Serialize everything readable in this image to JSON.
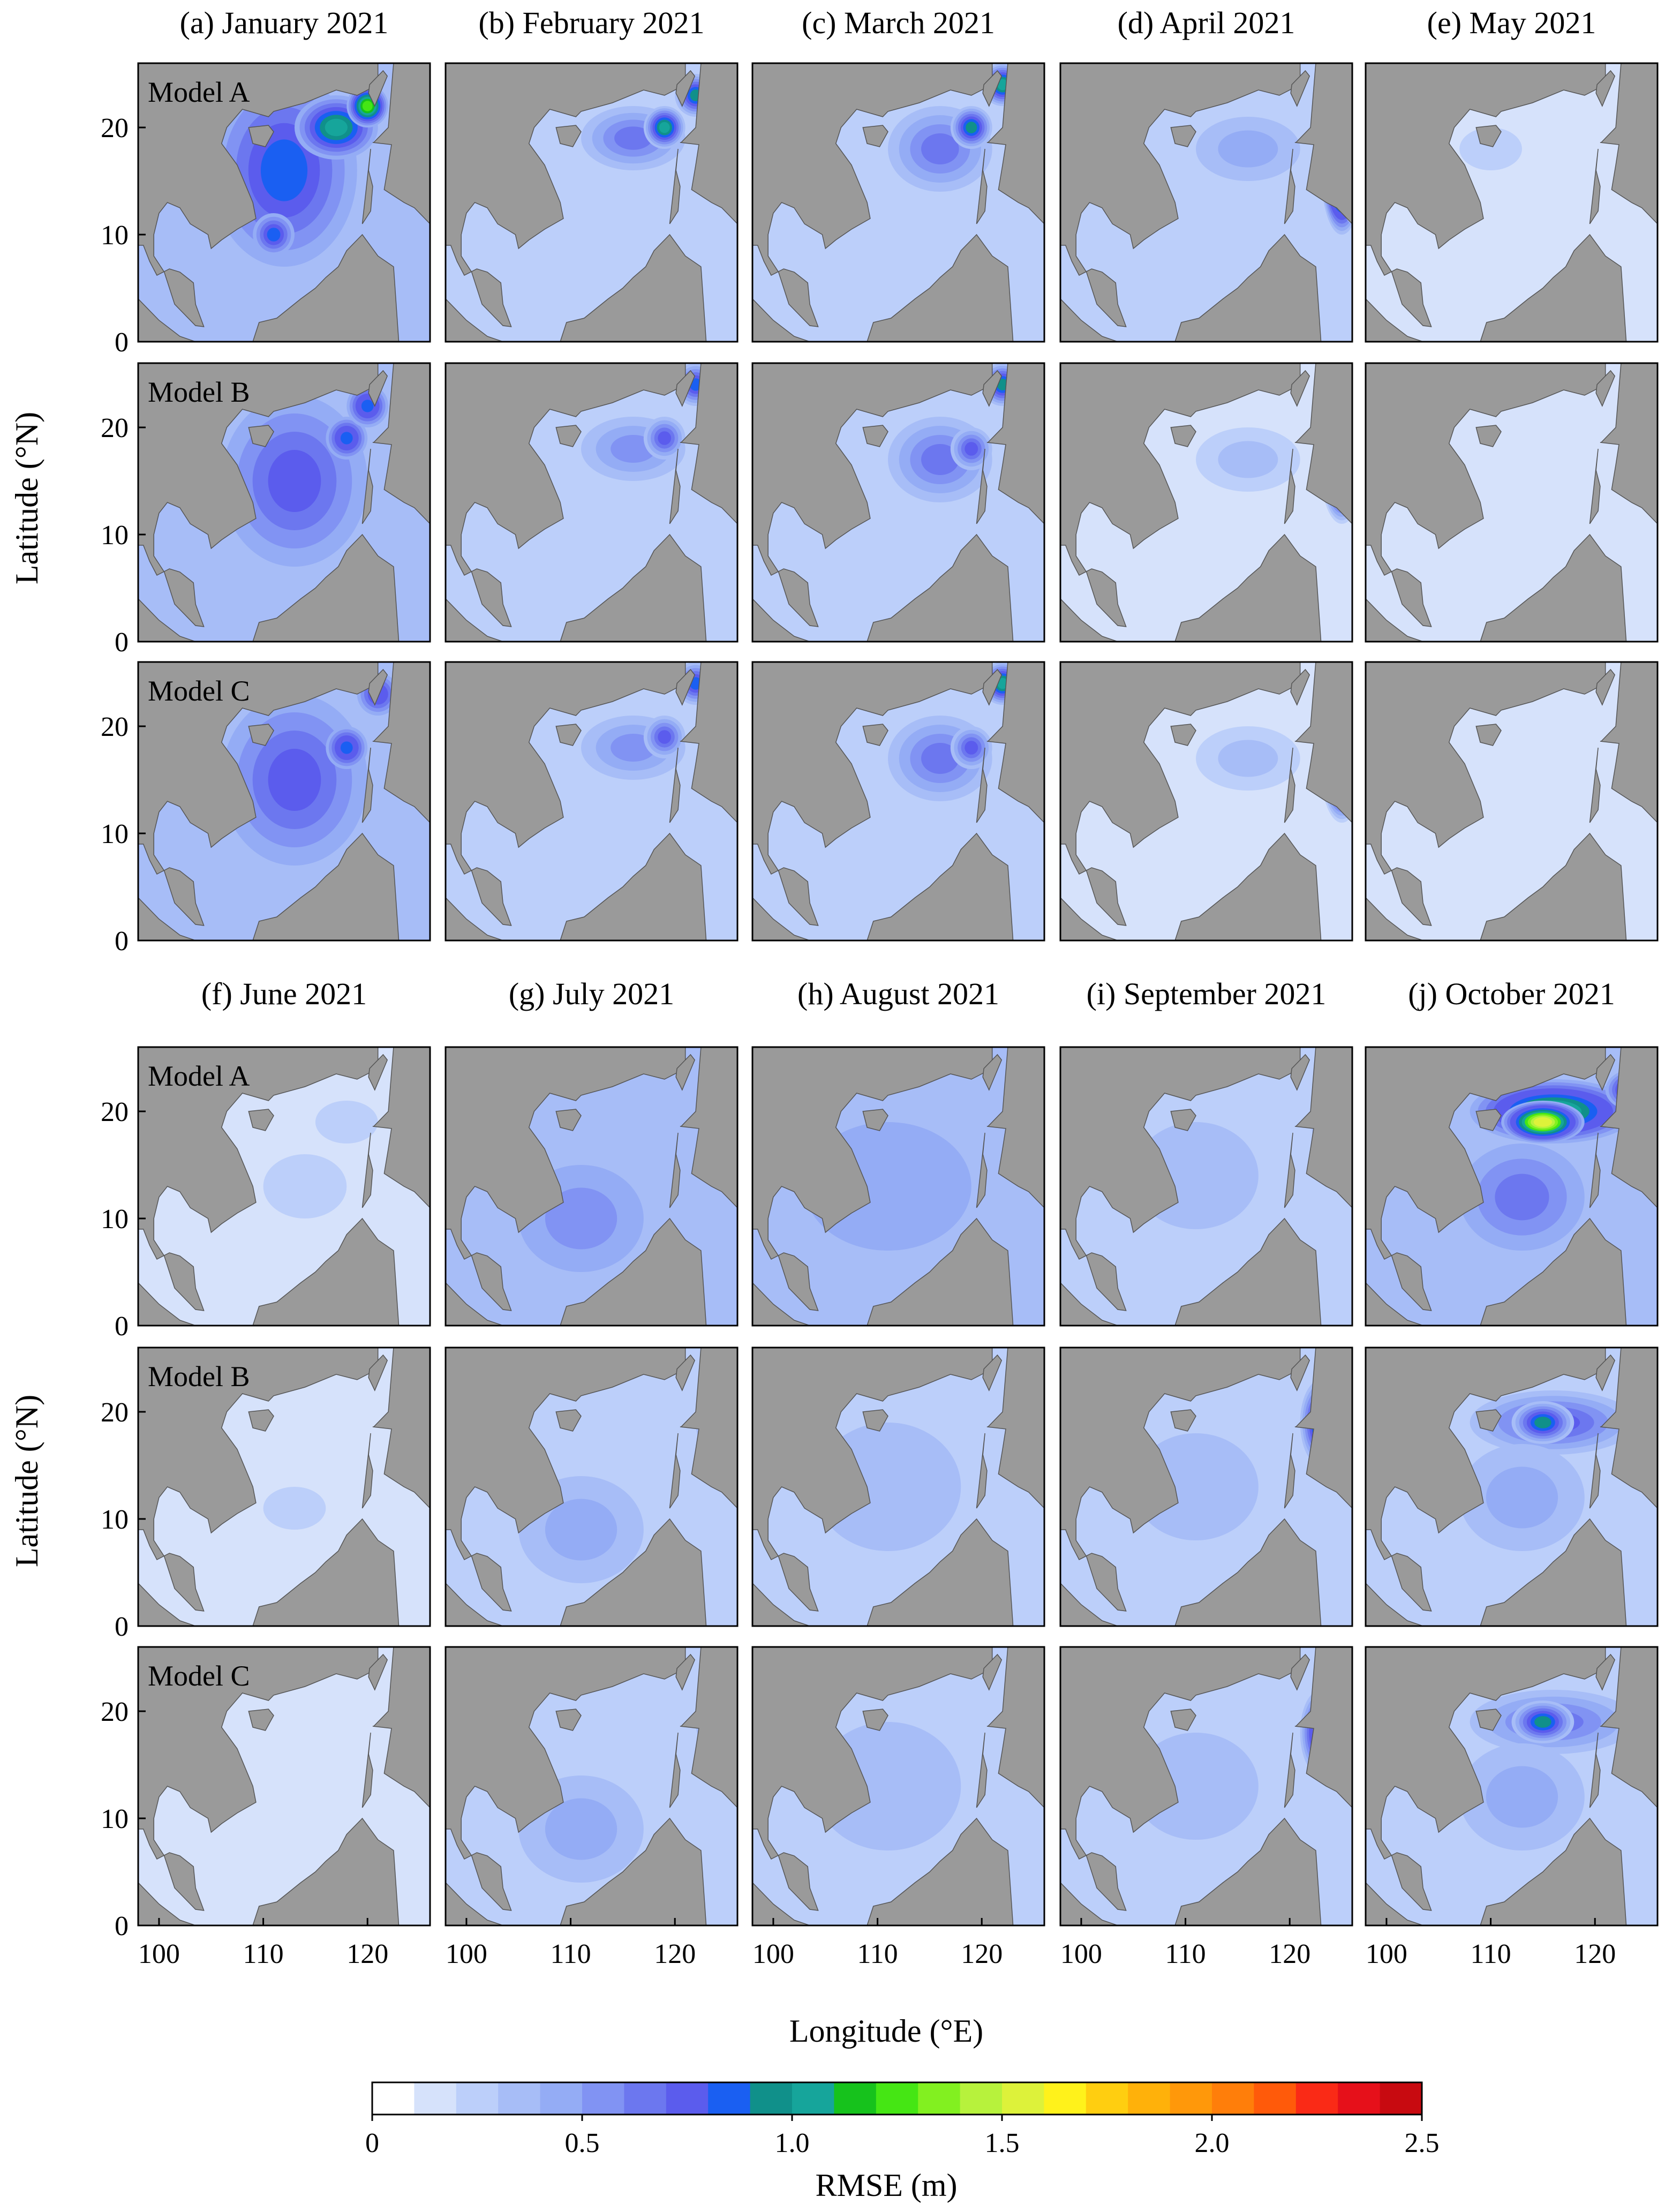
{
  "chart_data": {
    "type": "heatmap",
    "description_units": "RMSE (m) of modelled field over the South China Sea region",
    "months": [
      {
        "label": "(a) January 2021"
      },
      {
        "label": "(b) February 2021"
      },
      {
        "label": "(c) March 2021"
      },
      {
        "label": "(d) April 2021"
      },
      {
        "label": "(e) May 2021"
      },
      {
        "label": "(f) June 2021"
      },
      {
        "label": "(g) July 2021"
      },
      {
        "label": "(h) August 2021"
      },
      {
        "label": "(i) September 2021"
      },
      {
        "label": "(j) October 2021"
      }
    ],
    "models": [
      "Model A",
      "Model B",
      "Model C"
    ],
    "xlabel": "Longitude (°E)",
    "ylabel": "Latitude (°N)",
    "xlim": [
      98,
      126
    ],
    "ylim": [
      0,
      26
    ],
    "xticks": [
      "100",
      "110",
      "120"
    ],
    "yticks": [
      "0",
      "10",
      "20"
    ],
    "colorbar": {
      "label": "RMSE (m)",
      "levels": [
        0,
        0.1,
        0.2,
        0.3,
        0.4,
        0.5,
        0.6,
        0.7,
        0.8,
        0.9,
        1.0,
        1.1,
        1.2,
        1.3,
        1.4,
        1.5,
        1.6,
        1.7,
        1.8,
        1.9,
        2.0,
        2.1,
        2.2,
        2.3,
        2.4,
        2.5
      ],
      "tick_labels": [
        "0",
        "0.5",
        "1.0",
        "1.5",
        "2.0",
        "2.5"
      ],
      "colors": [
        "#ffffff",
        "#d6e2fb",
        "#bccffa",
        "#a7bdf7",
        "#94acf5",
        "#8193f3",
        "#6c77ef",
        "#5b5ced",
        "#1a5ff2",
        "#10908a",
        "#16a59b",
        "#16c21c",
        "#45e614",
        "#82f020",
        "#b7f23c",
        "#ddf23a",
        "#fff21b",
        "#ffce10",
        "#ffb10a",
        "#ff980a",
        "#ff7e0a",
        "#ff5a0a",
        "#fa2a16",
        "#e6101a",
        "#c80a10"
      ]
    },
    "land_color": "#9a9a9a",
    "panels": [
      {
        "month": 0,
        "model": 0,
        "base": 0.32,
        "blobs": [
          [
            112,
            16,
            7,
            9,
            0.85
          ],
          [
            117,
            20,
            4,
            3,
            1.05
          ],
          [
            120,
            22,
            2,
            2,
            1.3
          ],
          [
            111,
            10,
            2,
            2,
            0.9
          ]
        ]
      },
      {
        "month": 0,
        "model": 1,
        "base": 0.3,
        "blobs": [
          [
            113,
            15,
            7,
            8,
            0.72
          ],
          [
            118,
            19,
            2,
            2,
            0.9
          ],
          [
            120,
            22,
            2,
            2,
            0.9
          ]
        ]
      },
      {
        "month": 0,
        "model": 2,
        "base": 0.3,
        "blobs": [
          [
            113,
            15,
            7,
            8,
            0.7
          ],
          [
            118,
            18,
            2,
            2,
            0.9
          ],
          [
            121,
            23,
            2,
            2,
            0.85
          ]
        ]
      },
      {
        "month": 1,
        "model": 0,
        "base": 0.25,
        "blobs": [
          [
            116,
            19,
            5,
            3,
            0.7
          ],
          [
            119,
            20,
            2,
            2,
            1.1
          ],
          [
            122,
            23,
            2,
            2,
            1.0
          ]
        ]
      },
      {
        "month": 1,
        "model": 1,
        "base": 0.22,
        "blobs": [
          [
            116,
            18,
            5,
            3,
            0.6
          ],
          [
            119,
            19,
            2,
            2,
            0.75
          ],
          [
            122,
            24,
            2,
            2,
            0.85
          ]
        ]
      },
      {
        "month": 1,
        "model": 2,
        "base": 0.22,
        "blobs": [
          [
            116,
            18,
            5,
            3,
            0.6
          ],
          [
            119,
            19,
            2,
            2,
            0.8
          ],
          [
            122,
            24,
            2,
            2,
            0.85
          ]
        ]
      },
      {
        "month": 2,
        "model": 0,
        "base": 0.27,
        "blobs": [
          [
            116,
            18,
            5,
            4,
            0.75
          ],
          [
            119,
            20,
            2,
            2,
            1.05
          ],
          [
            122,
            24,
            2,
            2,
            1.15
          ]
        ]
      },
      {
        "month": 2,
        "model": 1,
        "base": 0.25,
        "blobs": [
          [
            116,
            17,
            5,
            4,
            0.65
          ],
          [
            119,
            18,
            2,
            2,
            0.75
          ],
          [
            122,
            24,
            2,
            2,
            1.0
          ]
        ]
      },
      {
        "month": 2,
        "model": 2,
        "base": 0.25,
        "blobs": [
          [
            116,
            17,
            5,
            4,
            0.65
          ],
          [
            119,
            18,
            2,
            2,
            0.75
          ],
          [
            122,
            24,
            2,
            2,
            1.05
          ]
        ]
      },
      {
        "month": 3,
        "model": 0,
        "base": 0.2,
        "blobs": [
          [
            116,
            18,
            5,
            3,
            0.45
          ],
          [
            125,
            16,
            2,
            6,
            1.7
          ],
          [
            126,
            14,
            1,
            3,
            2.05
          ]
        ]
      },
      {
        "month": 3,
        "model": 1,
        "base": 0.15,
        "blobs": [
          [
            116,
            17,
            5,
            3,
            0.4
          ],
          [
            125,
            16,
            2,
            5,
            1.45
          ],
          [
            126,
            14,
            1,
            2,
            1.8
          ]
        ]
      },
      {
        "month": 3,
        "model": 2,
        "base": 0.15,
        "blobs": [
          [
            116,
            17,
            5,
            3,
            0.4
          ],
          [
            125,
            16,
            2,
            5,
            1.45
          ],
          [
            126,
            14,
            1,
            2,
            1.8
          ]
        ]
      },
      {
        "month": 4,
        "model": 0,
        "base": 0.15,
        "blobs": [
          [
            110,
            18,
            3,
            2,
            0.28
          ]
        ]
      },
      {
        "month": 4,
        "model": 1,
        "base": 0.13,
        "blobs": []
      },
      {
        "month": 4,
        "model": 2,
        "base": 0.13,
        "blobs": []
      },
      {
        "month": 5,
        "model": 0,
        "base": 0.18,
        "blobs": [
          [
            114,
            13,
            4,
            3,
            0.3
          ],
          [
            118,
            19,
            3,
            2,
            0.32
          ]
        ]
      },
      {
        "month": 5,
        "model": 1,
        "base": 0.16,
        "blobs": [
          [
            113,
            11,
            3,
            2,
            0.25
          ]
        ]
      },
      {
        "month": 5,
        "model": 2,
        "base": 0.15,
        "blobs": []
      },
      {
        "month": 6,
        "model": 0,
        "base": 0.3,
        "blobs": [
          [
            111,
            10,
            6,
            5,
            0.55
          ],
          [
            124,
            20,
            2,
            3,
            0.55
          ]
        ]
      },
      {
        "month": 6,
        "model": 1,
        "base": 0.25,
        "blobs": [
          [
            111,
            9,
            6,
            5,
            0.45
          ],
          [
            124,
            19,
            2,
            3,
            0.45
          ]
        ]
      },
      {
        "month": 6,
        "model": 2,
        "base": 0.25,
        "blobs": [
          [
            111,
            9,
            6,
            5,
            0.45
          ],
          [
            124,
            19,
            2,
            3,
            0.45
          ]
        ]
      },
      {
        "month": 7,
        "model": 0,
        "base": 0.3,
        "blobs": [
          [
            111,
            13,
            8,
            6,
            0.4
          ],
          [
            126,
            25,
            1,
            2,
            0.9
          ]
        ]
      },
      {
        "month": 7,
        "model": 1,
        "base": 0.25,
        "blobs": [
          [
            111,
            13,
            7,
            6,
            0.35
          ],
          [
            126,
            25,
            1,
            2,
            0.8
          ]
        ]
      },
      {
        "month": 7,
        "model": 2,
        "base": 0.25,
        "blobs": [
          [
            111,
            13,
            7,
            6,
            0.35
          ],
          [
            126,
            25,
            1,
            2,
            0.8
          ]
        ]
      },
      {
        "month": 8,
        "model": 0,
        "base": 0.25,
        "blobs": [
          [
            111,
            14,
            6,
            5,
            0.4
          ],
          [
            124,
            20,
            2,
            5,
            1.5
          ],
          [
            125,
            20,
            1,
            4,
            1.8
          ]
        ]
      },
      {
        "month": 8,
        "model": 1,
        "base": 0.22,
        "blobs": [
          [
            111,
            13,
            6,
            5,
            0.35
          ],
          [
            123,
            19,
            2,
            4,
            1.1
          ]
        ]
      },
      {
        "month": 8,
        "model": 2,
        "base": 0.2,
        "blobs": [
          [
            111,
            13,
            6,
            5,
            0.33
          ],
          [
            123,
            18,
            2,
            4,
            1.05
          ]
        ]
      },
      {
        "month": 9,
        "model": 0,
        "base": 0.3,
        "blobs": [
          [
            116,
            20,
            8,
            3,
            1.2
          ],
          [
            115,
            19,
            4,
            2,
            1.55
          ],
          [
            124,
            22,
            3,
            2,
            1.1
          ],
          [
            113,
            12,
            6,
            5,
            0.6
          ]
        ]
      },
      {
        "month": 9,
        "model": 1,
        "base": 0.28,
        "blobs": [
          [
            116,
            19,
            8,
            3,
            0.8
          ],
          [
            115,
            19,
            3,
            2,
            1.05
          ],
          [
            113,
            12,
            6,
            5,
            0.55
          ]
        ]
      },
      {
        "month": 9,
        "model": 2,
        "base": 0.28,
        "blobs": [
          [
            116,
            19,
            8,
            3,
            0.75
          ],
          [
            115,
            19,
            3,
            2,
            1.05
          ],
          [
            113,
            12,
            6,
            5,
            0.55
          ]
        ]
      }
    ],
    "model_labels_on_columns": [
      0,
      5
    ]
  }
}
